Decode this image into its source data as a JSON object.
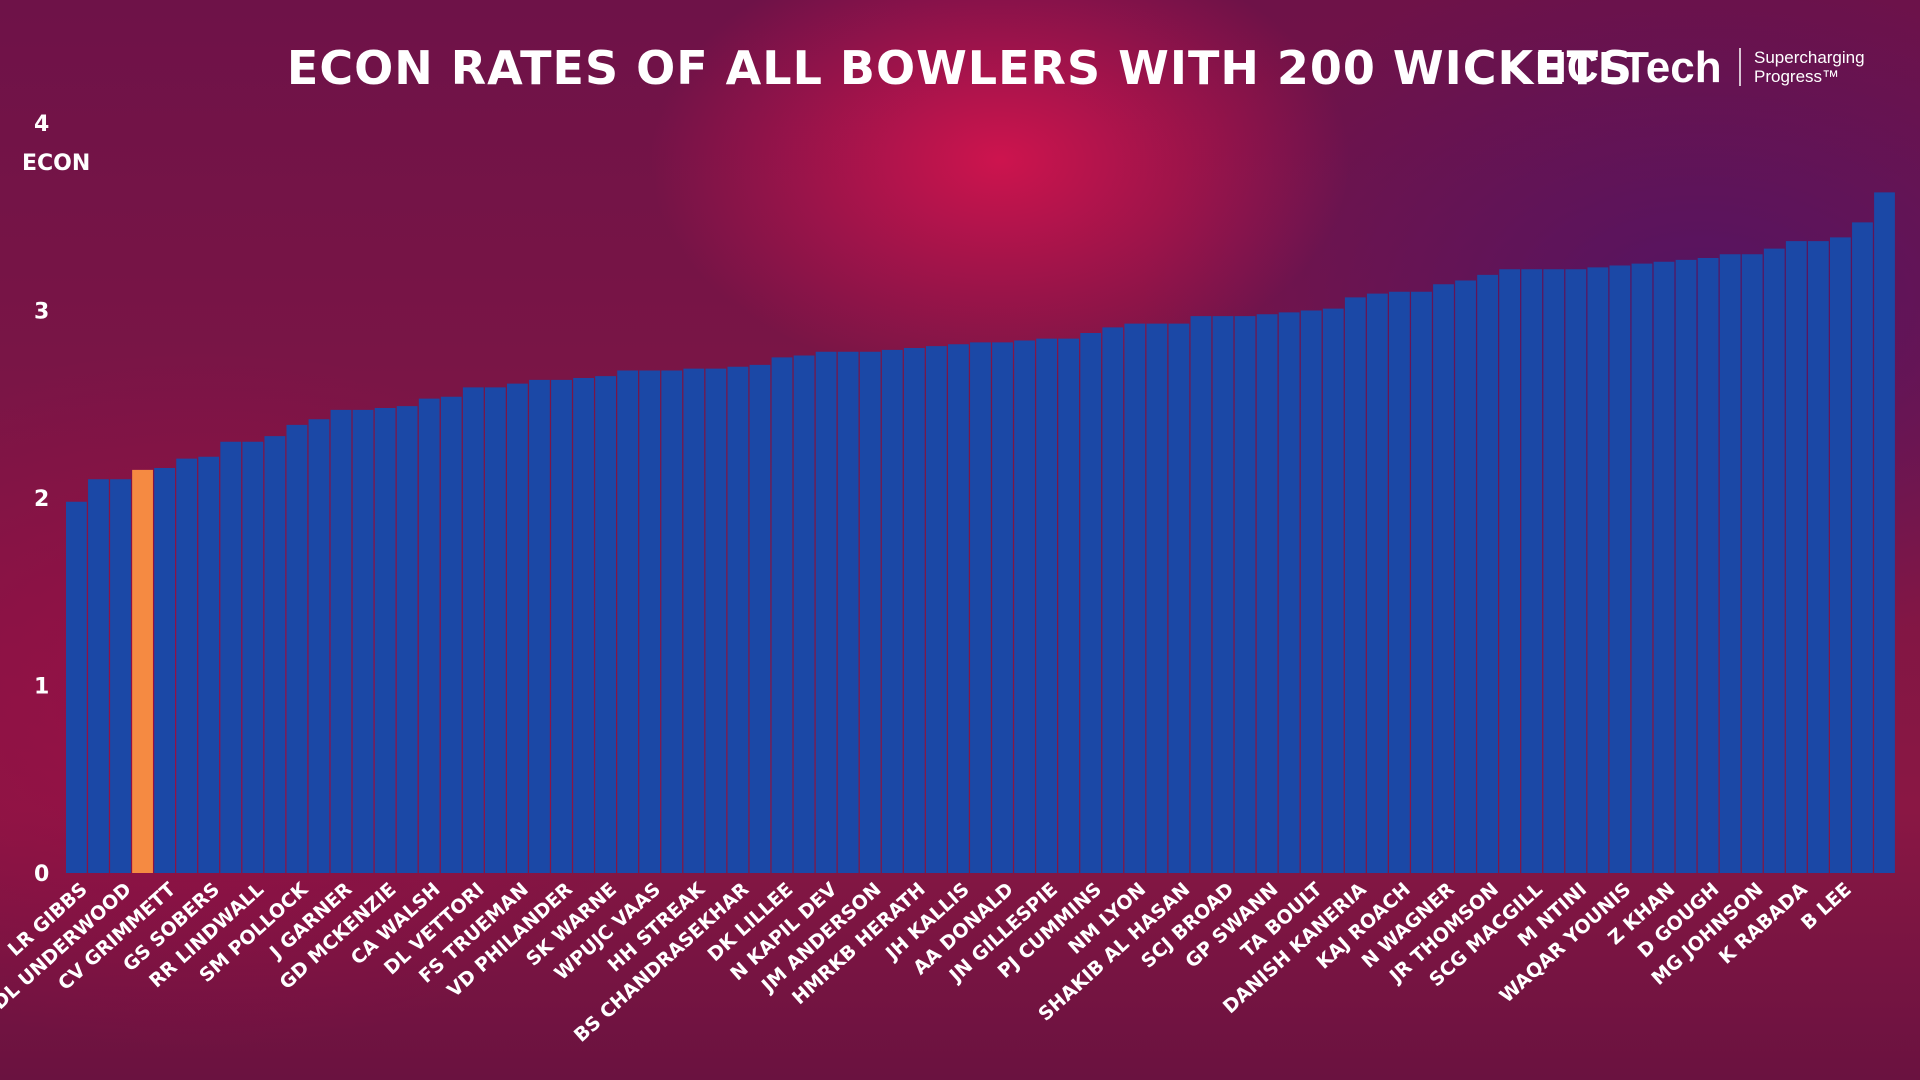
{
  "chart_data": {
    "type": "bar",
    "title": "ECON RATES OF ALL BOWLERS  WITH 200 WICKETS",
    "y_label": "ECON",
    "logo": "HCLTech",
    "tagline": [
      "Supercharging",
      "Progress™"
    ],
    "categories": [
      "LR GIBBS",
      null,
      "DL UNDERWOOD",
      null,
      "CV GRIMMETT",
      null,
      "GS SOBERS",
      null,
      "RR LINDWALL",
      null,
      "SM POLLOCK",
      null,
      "J GARNER",
      null,
      "GD MCKENZIE",
      null,
      "CA WALSH",
      null,
      "DL VETTORI",
      null,
      "FS TRUEMAN",
      null,
      "VD PHILANDER",
      null,
      "SK WARNE",
      null,
      "WPUJC VAAS",
      null,
      "HH STREAK",
      null,
      "BS CHANDRASEKHAR",
      null,
      "DK LILLEE",
      null,
      "N KAPIL DEV",
      null,
      "JM ANDERSON",
      null,
      "HMRKB HERATH",
      null,
      "JH KALLIS",
      null,
      "AA DONALD",
      null,
      "JN GILLESPIE",
      null,
      "PJ CUMMINS",
      null,
      "NM LYON",
      null,
      "SHAKIB AL HASAN",
      null,
      "SCJ BROAD",
      null,
      "GP SWANN",
      null,
      "TA BOULT",
      null,
      "DANISH KANERIA",
      null,
      "KAJ ROACH",
      null,
      "N WAGNER",
      null,
      "JR THOMSON",
      null,
      "SCG MACGILL",
      null,
      "M NTINI",
      null,
      "WAQAR YOUNIS",
      null,
      "Z KHAN",
      null,
      "D GOUGH",
      null,
      "MG JOHNSON",
      null,
      "K RABADA",
      null,
      "B LEE",
      null,
      null
    ],
    "values": [
      1.98,
      2.1,
      2.1,
      2.15,
      2.16,
      2.21,
      2.22,
      2.3,
      2.3,
      2.33,
      2.39,
      2.42,
      2.47,
      2.47,
      2.48,
      2.49,
      2.53,
      2.54,
      2.59,
      2.59,
      2.61,
      2.63,
      2.63,
      2.64,
      2.65,
      2.68,
      2.68,
      2.68,
      2.69,
      2.69,
      2.7,
      2.71,
      2.75,
      2.76,
      2.78,
      2.78,
      2.78,
      2.79,
      2.8,
      2.81,
      2.82,
      2.83,
      2.83,
      2.84,
      2.85,
      2.85,
      2.88,
      2.91,
      2.93,
      2.93,
      2.93,
      2.97,
      2.97,
      2.97,
      2.98,
      2.99,
      3.0,
      3.01,
      3.07,
      3.09,
      3.1,
      3.1,
      3.14,
      3.16,
      3.19,
      3.22,
      3.22,
      3.22,
      3.22,
      3.23,
      3.24,
      3.25,
      3.26,
      3.27,
      3.28,
      3.3,
      3.3,
      3.33,
      3.37,
      3.37,
      3.39,
      3.47,
      3.63
    ],
    "colors": [
      "#1b48a6",
      "#1b48a6",
      "#1b48a6",
      "#f58a42",
      "#1b48a6",
      "#1b48a6",
      "#1b48a6",
      "#1b48a6",
      "#1b48a6",
      "#1b48a6",
      "#1b48a6",
      "#1b48a6",
      "#1b48a6",
      "#1b48a6",
      "#1b48a6",
      "#1b48a6",
      "#1b48a6",
      "#1b48a6",
      "#1b48a6",
      "#1b48a6",
      "#1b48a6",
      "#1b48a6",
      "#1b48a6",
      "#1b48a6",
      "#1b48a6",
      "#1b48a6",
      "#1b48a6",
      "#1b48a6",
      "#1b48a6",
      "#1b48a6",
      "#1b48a6",
      "#1b48a6",
      "#1b48a6",
      "#1b48a6",
      "#1b48a6",
      "#1b48a6",
      "#1b48a6",
      "#1b48a6",
      "#1b48a6",
      "#1b48a6",
      "#1b48a6",
      "#1b48a6",
      "#1b48a6",
      "#1b48a6",
      "#1b48a6",
      "#1b48a6",
      "#1b48a6",
      "#1b48a6",
      "#1b48a6",
      "#1b48a6",
      "#1b48a6",
      "#1b48a6",
      "#1b48a6",
      "#1b48a6",
      "#1b48a6",
      "#1b48a6",
      "#1b48a6",
      "#1b48a6",
      "#1b48a6",
      "#1b48a6",
      "#1b48a6",
      "#1b48a6",
      "#1b48a6",
      "#1b48a6",
      "#1b48a6",
      "#1b48a6",
      "#1b48a6",
      "#1b48a6",
      "#1b48a6",
      "#1b48a6",
      "#1b48a6",
      "#1b48a6",
      "#1b48a6",
      "#1b48a6",
      "#1b48a6",
      "#1b48a6",
      "#1b48a6",
      "#1b48a6",
      "#1b48a6",
      "#1b48a6",
      "#1b48a6",
      "#1b48a6",
      "#1b48a6"
    ],
    "ylim": [
      0,
      4
    ],
    "yticks": [
      0,
      1,
      2,
      3,
      4
    ],
    "grid": false
  }
}
